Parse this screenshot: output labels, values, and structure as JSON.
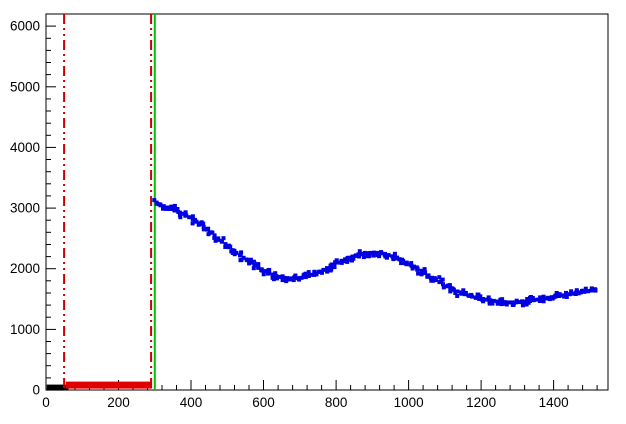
{
  "chart_data": {
    "type": "scatter",
    "title": "",
    "xlabel": "",
    "ylabel": "",
    "xlim": [
      0,
      1550
    ],
    "ylim": [
      0,
      6200
    ],
    "x_major_ticks": [
      0,
      200,
      400,
      600,
      800,
      1000,
      1200,
      1400
    ],
    "x_minor_step": 40,
    "y_major_ticks": [
      0,
      1000,
      2000,
      3000,
      4000,
      5000,
      6000
    ],
    "y_minor_step": 200,
    "grid": false,
    "legend": null,
    "background": "#ffffff",
    "frame_color": "#000000",
    "tick_label_color": "#000000",
    "series": [
      {
        "name": "blue-signal",
        "type": "scatter",
        "marker": "square",
        "marker_size_px": 4,
        "color": "#0000e0",
        "scatter_band_halfwidth": 55,
        "points": [
          [
            305,
            3090
          ],
          [
            315,
            3060
          ],
          [
            325,
            3030
          ],
          [
            335,
            3010
          ],
          [
            345,
            2985
          ],
          [
            355,
            2960
          ],
          [
            365,
            2935
          ],
          [
            375,
            2905
          ],
          [
            385,
            2880
          ],
          [
            395,
            2850
          ],
          [
            405,
            2815
          ],
          [
            415,
            2775
          ],
          [
            425,
            2735
          ],
          [
            435,
            2690
          ],
          [
            445,
            2645
          ],
          [
            455,
            2600
          ],
          [
            465,
            2550
          ],
          [
            475,
            2500
          ],
          [
            485,
            2455
          ],
          [
            495,
            2405
          ],
          [
            505,
            2355
          ],
          [
            515,
            2305
          ],
          [
            525,
            2260
          ],
          [
            535,
            2220
          ],
          [
            545,
            2180
          ],
          [
            555,
            2140
          ],
          [
            565,
            2100
          ],
          [
            575,
            2060
          ],
          [
            585,
            2025
          ],
          [
            595,
            1990
          ],
          [
            605,
            1960
          ],
          [
            615,
            1930
          ],
          [
            625,
            1905
          ],
          [
            635,
            1880
          ],
          [
            645,
            1865
          ],
          [
            655,
            1850
          ],
          [
            665,
            1845
          ],
          [
            675,
            1840
          ],
          [
            685,
            1840
          ],
          [
            695,
            1845
          ],
          [
            705,
            1850
          ],
          [
            715,
            1865
          ],
          [
            725,
            1880
          ],
          [
            735,
            1900
          ],
          [
            745,
            1925
          ],
          [
            755,
            1950
          ],
          [
            765,
            1980
          ],
          [
            775,
            2010
          ],
          [
            785,
            2040
          ],
          [
            795,
            2070
          ],
          [
            805,
            2100
          ],
          [
            815,
            2130
          ],
          [
            825,
            2155
          ],
          [
            835,
            2180
          ],
          [
            845,
            2200
          ],
          [
            855,
            2220
          ],
          [
            865,
            2235
          ],
          [
            875,
            2245
          ],
          [
            885,
            2255
          ],
          [
            895,
            2260
          ],
          [
            905,
            2265
          ],
          [
            915,
            2260
          ],
          [
            925,
            2255
          ],
          [
            935,
            2245
          ],
          [
            945,
            2225
          ],
          [
            955,
            2205
          ],
          [
            965,
            2180
          ],
          [
            975,
            2155
          ],
          [
            985,
            2130
          ],
          [
            995,
            2100
          ],
          [
            1005,
            2070
          ],
          [
            1015,
            2035
          ],
          [
            1025,
            2000
          ],
          [
            1035,
            1965
          ],
          [
            1045,
            1930
          ],
          [
            1055,
            1890
          ],
          [
            1065,
            1850
          ],
          [
            1075,
            1815
          ],
          [
            1085,
            1780
          ],
          [
            1095,
            1745
          ],
          [
            1105,
            1710
          ],
          [
            1115,
            1680
          ],
          [
            1125,
            1650
          ],
          [
            1135,
            1625
          ],
          [
            1145,
            1600
          ],
          [
            1155,
            1580
          ],
          [
            1165,
            1560
          ],
          [
            1175,
            1540
          ],
          [
            1185,
            1525
          ],
          [
            1195,
            1510
          ],
          [
            1205,
            1500
          ],
          [
            1215,
            1490
          ],
          [
            1225,
            1480
          ],
          [
            1235,
            1470
          ],
          [
            1245,
            1460
          ],
          [
            1255,
            1455
          ],
          [
            1265,
            1450
          ],
          [
            1275,
            1445
          ],
          [
            1285,
            1445
          ],
          [
            1295,
            1445
          ],
          [
            1305,
            1450
          ],
          [
            1315,
            1455
          ],
          [
            1325,
            1460
          ],
          [
            1335,
            1470
          ],
          [
            1345,
            1480
          ],
          [
            1355,
            1490
          ],
          [
            1365,
            1500
          ],
          [
            1375,
            1510
          ],
          [
            1385,
            1520
          ],
          [
            1395,
            1530
          ],
          [
            1405,
            1540
          ],
          [
            1415,
            1550
          ],
          [
            1425,
            1560
          ],
          [
            1435,
            1570
          ],
          [
            1445,
            1580
          ],
          [
            1455,
            1590
          ],
          [
            1465,
            1600
          ],
          [
            1475,
            1610
          ],
          [
            1485,
            1620
          ],
          [
            1495,
            1630
          ],
          [
            1505,
            1640
          ],
          [
            1515,
            1650
          ]
        ]
      }
    ],
    "bands": [
      {
        "name": "black-pedestal",
        "color": "#000000",
        "x1": 2,
        "x2": 62,
        "y": 40,
        "thickness_px": 6
      },
      {
        "name": "red-pedestal",
        "color": "#e00000",
        "x1": 55,
        "x2": 292,
        "y": 80,
        "thickness_px": 7
      }
    ],
    "vlines": [
      {
        "name": "cut-low",
        "x": 50,
        "color": "#cc0000",
        "style": "dash-dot-dot",
        "width": 2
      },
      {
        "name": "cut-high",
        "x": 290,
        "color": "#cc0000",
        "style": "dash-dot-dot",
        "width": 2
      },
      {
        "name": "threshold",
        "x": 300,
        "color": "#00c000",
        "style": "solid",
        "width": 2
      }
    ]
  }
}
